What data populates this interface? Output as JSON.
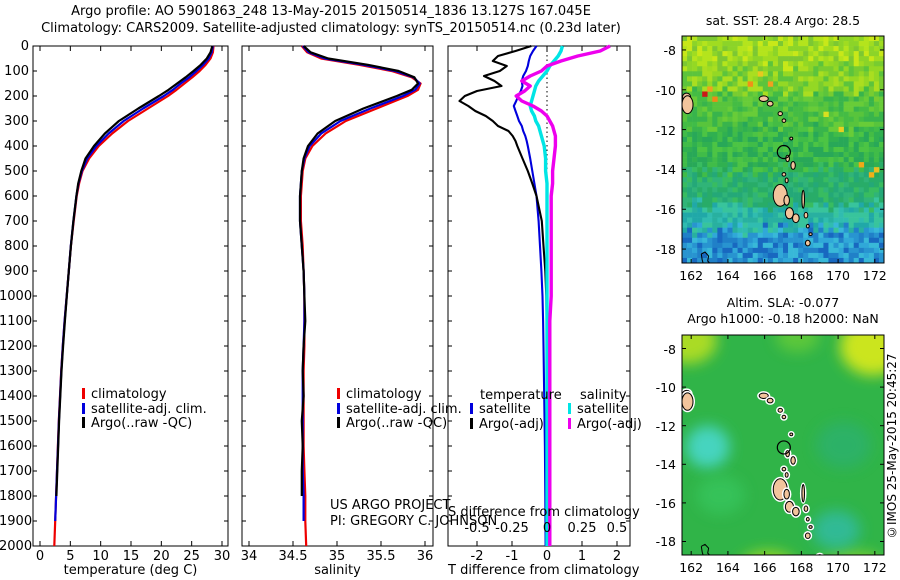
{
  "title": {
    "line1": "Argo profile: AO 5901863_248 13-May-2015 20150514_1836 13.127S 167.045E",
    "line2": "Climatology: CARS2009. Satellite-adjusted climatology: synTS_20150514.nc (0.23d later)"
  },
  "project": {
    "line1": "US ARGO PROJECT",
    "line2": "PI: GREGORY C. JOHNSON"
  },
  "credit": "©IMOS 25-May-2015 20:45:27",
  "colors": {
    "climatology": "#ee0000",
    "satellite_adj": "#0000dd",
    "argo": "#000000",
    "sat_S": "#00e5e5",
    "argo_S": "#ee00ee",
    "land": "#f2c49c",
    "background": "#ffffff"
  },
  "chart_data": {
    "temperature_profile": {
      "type": "line",
      "xlabel": "temperature (deg C)",
      "xticks": [
        0,
        5,
        10,
        15,
        20,
        25,
        30
      ],
      "xlim": [
        -1.2,
        31
      ],
      "ylabel": "depth",
      "ylim": [
        0,
        2000
      ],
      "yticks": [
        0,
        100,
        200,
        300,
        400,
        500,
        600,
        700,
        800,
        900,
        1000,
        1100,
        1200,
        1300,
        1400,
        1500,
        1600,
        1700,
        1800,
        1900,
        2000
      ],
      "grid": false,
      "legend_position": "inside-mid-left",
      "legend": [
        {
          "label": "climatology",
          "color": "#ee0000"
        },
        {
          "label": "satellite-adj. clim.",
          "color": "#0000dd"
        },
        {
          "label": "Argo(..raw -QC)",
          "color": "#000000"
        }
      ],
      "depths": [
        0,
        25,
        50,
        75,
        100,
        125,
        150,
        175,
        200,
        250,
        300,
        350,
        400,
        450,
        500,
        550,
        600,
        700,
        800,
        900,
        1000,
        1100,
        1200,
        1300,
        1400,
        1500,
        1600,
        1700,
        1800,
        1900,
        2000
      ],
      "series": [
        {
          "name": "climatology",
          "color": "#ee0000",
          "values": [
            28.6,
            28.5,
            28.1,
            27.3,
            26.3,
            25.1,
            23.8,
            22.5,
            21.1,
            17.8,
            14.5,
            11.9,
            9.7,
            8.1,
            7.0,
            6.45,
            6.05,
            5.55,
            5.1,
            4.75,
            4.4,
            4.05,
            3.75,
            3.5,
            3.3,
            3.1,
            2.95,
            2.8,
            2.65,
            2.5,
            2.35
          ]
        },
        {
          "name": "satellite-adj. clim.",
          "color": "#0000dd",
          "values": [
            28.5,
            28.3,
            27.8,
            26.9,
            25.8,
            24.6,
            23.2,
            21.9,
            20.4,
            17.0,
            13.8,
            11.3,
            9.3,
            7.8,
            6.9,
            6.35,
            6.0,
            5.5,
            5.08,
            4.74,
            4.4,
            4.06,
            3.76,
            3.51,
            3.31,
            3.11,
            2.96,
            2.81,
            2.66,
            2.51,
            null
          ]
        },
        {
          "name": "Argo(..raw -QC)",
          "color": "#000000",
          "values": [
            28.4,
            28.1,
            27.5,
            26.5,
            25.3,
            24.0,
            22.6,
            21.2,
            19.6,
            16.2,
            13.0,
            10.7,
            8.9,
            7.5,
            6.8,
            6.3,
            6.0,
            5.5,
            5.1,
            4.75,
            4.42,
            4.1,
            3.8,
            3.55,
            3.35,
            3.15,
            3.0,
            2.85,
            2.7,
            null,
            null
          ]
        }
      ]
    },
    "salinity_profile": {
      "type": "line",
      "xlabel": "salinity",
      "xticks": [
        34,
        34.5,
        35,
        35.5,
        36
      ],
      "xticklabels": [
        "34",
        "34.5",
        "35",
        "35.5",
        "36"
      ],
      "xlim": [
        33.92,
        36.09
      ],
      "ylim": [
        0,
        2000
      ],
      "grid": false,
      "legend_position": "inside-mid-left",
      "legend": [
        {
          "label": "climatology",
          "color": "#ee0000"
        },
        {
          "label": "satellite-adj. clim.",
          "color": "#0000dd"
        },
        {
          "label": "Argo(..raw -QC)",
          "color": "#000000"
        }
      ],
      "depths": [
        0,
        25,
        50,
        75,
        100,
        125,
        150,
        175,
        200,
        250,
        300,
        350,
        400,
        450,
        500,
        550,
        600,
        700,
        800,
        900,
        1000,
        1100,
        1200,
        1300,
        1400,
        1500,
        1600,
        1700,
        1800,
        1900,
        2000
      ],
      "series": [
        {
          "name": "climatology",
          "color": "#ee0000",
          "values": [
            34.6,
            34.66,
            34.82,
            35.25,
            35.62,
            35.85,
            35.95,
            35.92,
            35.8,
            35.45,
            35.1,
            34.87,
            34.72,
            34.64,
            34.61,
            34.6,
            34.59,
            34.59,
            34.61,
            34.62,
            34.63,
            34.63,
            34.63,
            34.62,
            34.62,
            34.62,
            34.62,
            34.63,
            34.64,
            34.64,
            34.65
          ]
        },
        {
          "name": "satellite-adj. clim.",
          "color": "#0000dd",
          "values": [
            34.61,
            34.68,
            34.86,
            35.3,
            35.66,
            35.87,
            35.94,
            35.89,
            35.75,
            35.38,
            35.04,
            34.82,
            34.69,
            34.63,
            34.6,
            34.59,
            34.58,
            34.58,
            34.6,
            34.62,
            34.63,
            34.63,
            34.62,
            34.61,
            34.61,
            34.61,
            34.61,
            34.61,
            34.62,
            34.62,
            null
          ]
        },
        {
          "name": "Argo(..raw -QC)",
          "color": "#000000",
          "values": [
            34.62,
            34.7,
            34.9,
            35.35,
            35.7,
            35.88,
            35.92,
            35.85,
            35.68,
            35.3,
            34.98,
            34.78,
            34.67,
            34.62,
            34.6,
            34.59,
            34.58,
            34.58,
            34.6,
            34.62,
            34.63,
            34.64,
            34.62,
            34.61,
            34.62,
            34.6,
            34.61,
            34.6,
            34.6,
            null,
            null
          ]
        }
      ]
    },
    "difference_panel": {
      "type": "line",
      "xlabel_bottom": "T difference from climatology",
      "xticks_T": [
        -2,
        -1,
        0,
        1,
        2
      ],
      "xlabel_inner": "S difference from climatology",
      "xticks_S": [
        "-0.5",
        "-0.25",
        "0",
        "0.25",
        "0.5"
      ],
      "s_to_t_scale": 4,
      "xlim_T": [
        -2.83,
        2.37
      ],
      "ylim": [
        0,
        2000
      ],
      "zero_line": "dotted",
      "grid": false,
      "legend_headers": [
        "temperature",
        "salinity"
      ],
      "legend_T": [
        {
          "label": "satellite",
          "color": "#0000dd"
        },
        {
          "label": "Argo(-adj)",
          "color": "#000000"
        }
      ],
      "legend_S": [
        {
          "label": "satellite",
          "color": "#00e5e5"
        },
        {
          "label": "Argo(-adj)",
          "color": "#ee00ee"
        }
      ],
      "depths": [
        0,
        20,
        40,
        60,
        80,
        100,
        120,
        140,
        160,
        180,
        200,
        220,
        240,
        260,
        280,
        300,
        320,
        340,
        360,
        380,
        400,
        450,
        500,
        550,
        600,
        700,
        800,
        900,
        1000,
        1100,
        1200,
        1400,
        1600,
        1800,
        2000
      ],
      "series": [
        {
          "name": "T satellite",
          "color": "#0000dd",
          "axis": "T",
          "values": [
            -0.3,
            -0.4,
            -0.48,
            -0.52,
            -0.55,
            -0.6,
            -0.68,
            -0.72,
            -0.7,
            -0.75,
            -0.82,
            -0.88,
            -0.95,
            -0.9,
            -0.85,
            -0.8,
            -0.72,
            -0.68,
            -0.62,
            -0.58,
            -0.55,
            -0.48,
            -0.42,
            -0.36,
            -0.3,
            -0.24,
            -0.2,
            -0.16,
            -0.13,
            -0.11,
            -0.1,
            -0.08,
            -0.06,
            -0.05,
            -0.04
          ]
        },
        {
          "name": "T Argo(-adj)",
          "color": "#000000",
          "axis": "T",
          "values": [
            -0.45,
            -0.9,
            -1.4,
            -1.55,
            -1.15,
            -1.35,
            -1.8,
            -1.5,
            -1.3,
            -2.0,
            -2.35,
            -2.5,
            -2.25,
            -2.05,
            -1.75,
            -1.55,
            -1.4,
            -1.1,
            -0.98,
            -0.9,
            -0.85,
            -0.7,
            -0.55,
            -0.42,
            -0.3,
            -0.15,
            -0.1,
            -0.05,
            -0.02,
            -0.01,
            0.0,
            0.02,
            0.03,
            0.05,
            null
          ]
        },
        {
          "name": "S satellite",
          "color": "#00e5e5",
          "axis": "S",
          "values": [
            0.11,
            0.1,
            0.08,
            0.05,
            0.02,
            0.0,
            -0.03,
            -0.06,
            -0.08,
            -0.09,
            -0.1,
            -0.11,
            -0.12,
            -0.11,
            -0.09,
            -0.08,
            -0.06,
            -0.05,
            -0.04,
            -0.03,
            -0.02,
            -0.01,
            -0.01,
            0.0,
            0.0,
            0.0,
            0.0,
            0.0,
            0.0,
            0.0,
            0.0,
            0.0,
            0.0,
            0.0,
            0.0
          ]
        },
        {
          "name": "S Argo(-adj)",
          "color": "#ee00ee",
          "axis": "S",
          "values": [
            0.45,
            0.38,
            0.22,
            0.1,
            0.0,
            -0.04,
            -0.12,
            -0.18,
            -0.12,
            -0.16,
            -0.22,
            -0.18,
            -0.1,
            -0.04,
            0.0,
            0.02,
            0.04,
            0.05,
            0.06,
            0.06,
            0.06,
            0.05,
            0.04,
            0.04,
            0.03,
            0.03,
            0.03,
            0.03,
            0.03,
            0.02,
            0.02,
            0.02,
            0.02,
            0.02,
            0.02
          ]
        }
      ]
    },
    "sst_map": {
      "type": "heatmap",
      "title": "sat. SST: 28.4 Argo: 28.5",
      "lon_range": [
        161.5,
        172.5
      ],
      "lat_range": [
        -18.7,
        -7.3
      ],
      "xticks": [
        162,
        164,
        166,
        168,
        170,
        172
      ],
      "yticks": [
        -8,
        -10,
        -12,
        -14,
        -16,
        -18
      ],
      "marker": {
        "lon": 167.045,
        "lat": -13.127
      },
      "lat_bands": [
        {
          "lat_from": -7.3,
          "lat_to": -8.8,
          "colors": [
            "#a0dc20",
            "#b4e41c",
            "#8cd428",
            "#c8e818",
            "#7cc832"
          ]
        },
        {
          "lat_from": -8.8,
          "lat_to": -10.2,
          "colors": [
            "#78cc30",
            "#94d824",
            "#5cc43c",
            "#aade20"
          ]
        },
        {
          "lat_from": -10.2,
          "lat_to": -12.0,
          "colors": [
            "#44bc44",
            "#58c43c",
            "#38b44c",
            "#68cc38"
          ]
        },
        {
          "lat_from": -12.0,
          "lat_to": -14.0,
          "colors": [
            "#30b050",
            "#40bc48",
            "#28a858",
            "#4cc444"
          ]
        },
        {
          "lat_from": -14.0,
          "lat_to": -15.8,
          "colors": [
            "#28ac68",
            "#30b478",
            "#24a878",
            "#38bc60"
          ]
        },
        {
          "lat_from": -15.8,
          "lat_to": -17.0,
          "colors": [
            "#28b0a0",
            "#30bcb0",
            "#20a8a8",
            "#38c49c"
          ]
        },
        {
          "lat_from": -17.0,
          "lat_to": -18.7,
          "colors": [
            "#2894d0",
            "#2080c8",
            "#30a8d8",
            "#1868c0",
            "#38b8d8"
          ]
        }
      ],
      "anomalies": [
        {
          "lon": 162.8,
          "lat": -10.25,
          "color": "#cc1818"
        },
        {
          "lon": 163.15,
          "lat": -10.5,
          "color": "#f08818"
        },
        {
          "lon": 163.0,
          "lat": -9.9,
          "color": "#f0a020"
        },
        {
          "lon": 165.2,
          "lat": -9.65,
          "color": "#f09018"
        },
        {
          "lon": 166.45,
          "lat": -9.6,
          "color": "#f0a020"
        },
        {
          "lon": 165.8,
          "lat": -9.3,
          "color": "#e8c820"
        },
        {
          "lon": 171.3,
          "lat": -13.85,
          "color": "#f0a818"
        },
        {
          "lon": 171.8,
          "lat": -14.15,
          "color": "#f0b018"
        },
        {
          "lon": 172.1,
          "lat": -13.9,
          "color": "#e8c020"
        },
        {
          "lon": 170.2,
          "lat": -12.1,
          "color": "#e8d020"
        },
        {
          "lon": 169.3,
          "lat": -11.2,
          "color": "#d8e020"
        }
      ]
    },
    "sla_map": {
      "type": "heatmap",
      "title_line1": "Altim. SLA: -0.077",
      "title_line2": "Argo h1000: -0.18 h2000: NaN",
      "lon_range": [
        161.5,
        172.5
      ],
      "lat_range": [
        -18.7,
        -7.3
      ],
      "xticks": [
        162,
        164,
        166,
        168,
        170,
        172
      ],
      "yticks": [
        -8,
        -10,
        -12,
        -14,
        -16,
        -18
      ],
      "marker": {
        "lon": 167.045,
        "lat": -13.127
      },
      "base_color": "#30b448",
      "blobs": [
        {
          "lon": 161.8,
          "lat": -7.6,
          "rx": 1.6,
          "ry": 1.2,
          "color": "#b8e020",
          "opacity": 0.9
        },
        {
          "lon": 171.9,
          "lat": -7.9,
          "rx": 1.8,
          "ry": 1.5,
          "color": "#d4e81c",
          "opacity": 0.95
        },
        {
          "lon": 167.8,
          "lat": -7.4,
          "rx": 1.2,
          "ry": 0.8,
          "color": "#68cc38",
          "opacity": 0.8
        },
        {
          "lon": 162.9,
          "lat": -13.1,
          "rx": 1.2,
          "ry": 1.1,
          "color": "#48d8cc",
          "opacity": 0.9
        },
        {
          "lon": 163.6,
          "lat": -15.6,
          "rx": 1.3,
          "ry": 1.0,
          "color": "#38c860",
          "opacity": 0.7
        },
        {
          "lon": 166.2,
          "lat": -19.4,
          "rx": 1.6,
          "ry": 0.9,
          "color": "#a8dc24",
          "opacity": 0.9
        },
        {
          "lon": 170.8,
          "lat": -19.3,
          "rx": 1.8,
          "ry": 0.8,
          "color": "#90d42c",
          "opacity": 0.8
        },
        {
          "lon": 169.9,
          "lat": -17.4,
          "rx": 1.3,
          "ry": 1.0,
          "color": "#30bca8",
          "opacity": 0.8
        },
        {
          "lon": 170.3,
          "lat": -13.0,
          "rx": 1.5,
          "ry": 1.2,
          "color": "#2cb07c",
          "opacity": 0.6
        }
      ]
    }
  },
  "geo": {
    "islands": [
      [
        161.75,
        -10.35,
        0.22,
        0.18
      ],
      [
        161.8,
        -10.75,
        0.3,
        0.45
      ],
      [
        165.95,
        -10.45,
        0.25,
        0.14
      ],
      [
        166.3,
        -10.7,
        0.16,
        0.12
      ],
      [
        166.85,
        -11.2,
        0.12,
        0.1
      ],
      [
        167.05,
        -11.55,
        0.1,
        0.09
      ],
      [
        167.45,
        -12.45,
        0.08,
        0.07
      ],
      [
        167.25,
        -13.45,
        0.1,
        0.16
      ],
      [
        167.55,
        -13.8,
        0.12,
        0.2
      ],
      [
        167.05,
        -14.25,
        0.1,
        0.09
      ],
      [
        167.2,
        -14.55,
        0.08,
        0.12
      ],
      [
        166.85,
        -15.3,
        0.38,
        0.55
      ],
      [
        167.2,
        -15.55,
        0.15,
        0.25
      ],
      [
        168.1,
        -15.5,
        0.07,
        0.45
      ],
      [
        167.35,
        -16.2,
        0.22,
        0.28
      ],
      [
        167.7,
        -16.45,
        0.18,
        0.22
      ],
      [
        168.25,
        -16.3,
        0.1,
        0.14
      ],
      [
        168.35,
        -16.85,
        0.08,
        0.09
      ],
      [
        168.5,
        -17.25,
        0.09,
        0.07
      ],
      [
        168.35,
        -17.7,
        0.13,
        0.14
      ],
      [
        169.0,
        -18.8,
        0.15,
        0.12
      ],
      [
        169.2,
        -19.3,
        0.12,
        0.1
      ]
    ],
    "coast_outline": [
      [
        162.55,
        -18.25
      ],
      [
        162.75,
        -18.15
      ],
      [
        162.95,
        -18.35
      ],
      [
        162.9,
        -18.6
      ],
      [
        163.05,
        -18.75
      ],
      [
        163.0,
        -19.05
      ],
      [
        163.2,
        -19.25
      ],
      [
        163.25,
        -19.55
      ],
      [
        163.05,
        -19.65
      ],
      [
        162.85,
        -19.4
      ],
      [
        162.9,
        -19.1
      ],
      [
        162.7,
        -18.85
      ],
      [
        162.6,
        -18.55
      ],
      [
        162.55,
        -18.25
      ]
    ]
  }
}
